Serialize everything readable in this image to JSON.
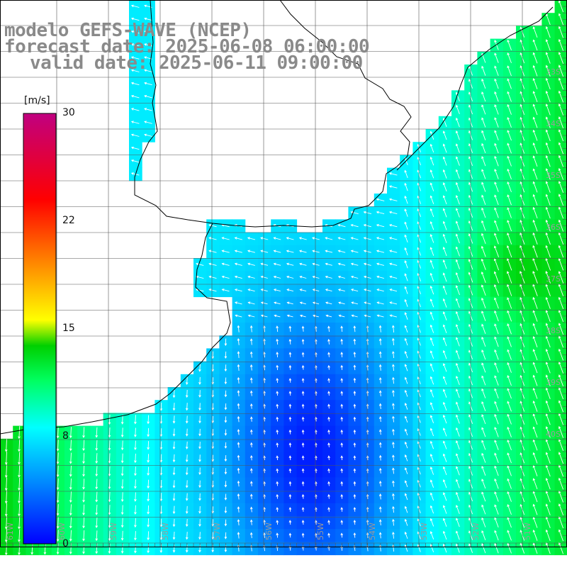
{
  "title": {
    "model": "modelo GEFS-WAVE (NCEP)",
    "forecast": "forecast date: 2025-06-08 06:00:00",
    "valid": "valid date: 2025-06-11 09:00:00"
  },
  "colorbar": {
    "unit": "[m/s]",
    "ticks": [
      "30",
      "22",
      "15",
      "8",
      "0"
    ],
    "tick_values": [
      30,
      22,
      15,
      8,
      0
    ],
    "colors": [
      "#0000ff",
      "#0090ff",
      "#00ffff",
      "#00ff60",
      "#00d000",
      "#ffff00",
      "#ff8000",
      "#ff0000",
      "#c00080"
    ]
  },
  "axes": {
    "lon_labels": [
      "61W",
      "60W",
      "59W",
      "58W",
      "57W",
      "56W",
      "55W",
      "54W",
      "53W",
      "52W",
      "51W"
    ],
    "lat_labels": [
      "33S",
      "34S",
      "35S",
      "36S",
      "37S",
      "38S",
      "39S",
      "40S"
    ]
  },
  "map_data": {
    "field": "wind speed (m/s) with direction arrows",
    "speed_range_shown": [
      0,
      12
    ],
    "prevailing_direction": "southerly to south-easterly winds over open ocean, easterly near the estuary"
  }
}
